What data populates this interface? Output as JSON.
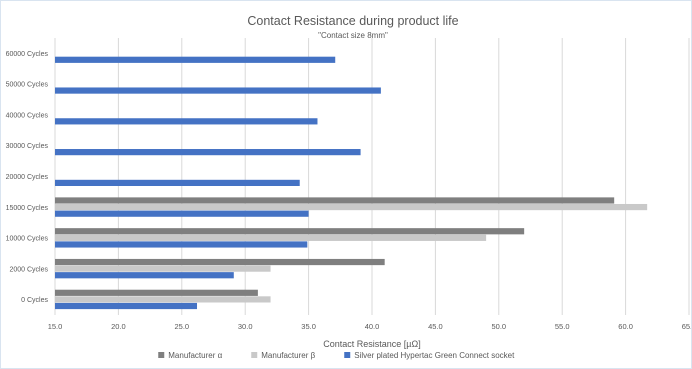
{
  "chart_data": {
    "type": "bar",
    "orientation": "horizontal",
    "title": "Contact Resistance during product life",
    "subtitle": "\"Contact size 8mm\"",
    "xlabel": "Contact Resistance [µΩ]",
    "ylabel": "",
    "xlim": [
      15,
      65
    ],
    "xticks": [
      "15.0",
      "20.0",
      "25.0",
      "30.0",
      "35.0",
      "40.0",
      "45.0",
      "50.0",
      "55.0",
      "60.0",
      "65.0"
    ],
    "grid": true,
    "legend_position": "bottom",
    "categories": [
      "60000 Cycles",
      "50000 Cycles",
      "40000 Cycles",
      "30000 Cycles",
      "20000 Cycles",
      "15000 Cycles",
      "10000 Cycles",
      "2000 Cycles",
      "0 Cycles"
    ],
    "series": [
      {
        "name": "Manufacturer α",
        "color": "#7f7f7f",
        "values": [
          null,
          null,
          null,
          null,
          null,
          59.1,
          52.0,
          41.0,
          31.0
        ]
      },
      {
        "name": "Manufacturer β",
        "color": "#c9c9c9",
        "values": [
          null,
          null,
          null,
          null,
          null,
          61.7,
          49.0,
          32.0,
          32.0
        ]
      },
      {
        "name": "Silver plated Hypertac Green Connect socket",
        "color": "#4472c4",
        "values": [
          37.1,
          40.7,
          35.7,
          39.1,
          34.3,
          35.0,
          34.9,
          29.1,
          26.2
        ]
      }
    ]
  }
}
